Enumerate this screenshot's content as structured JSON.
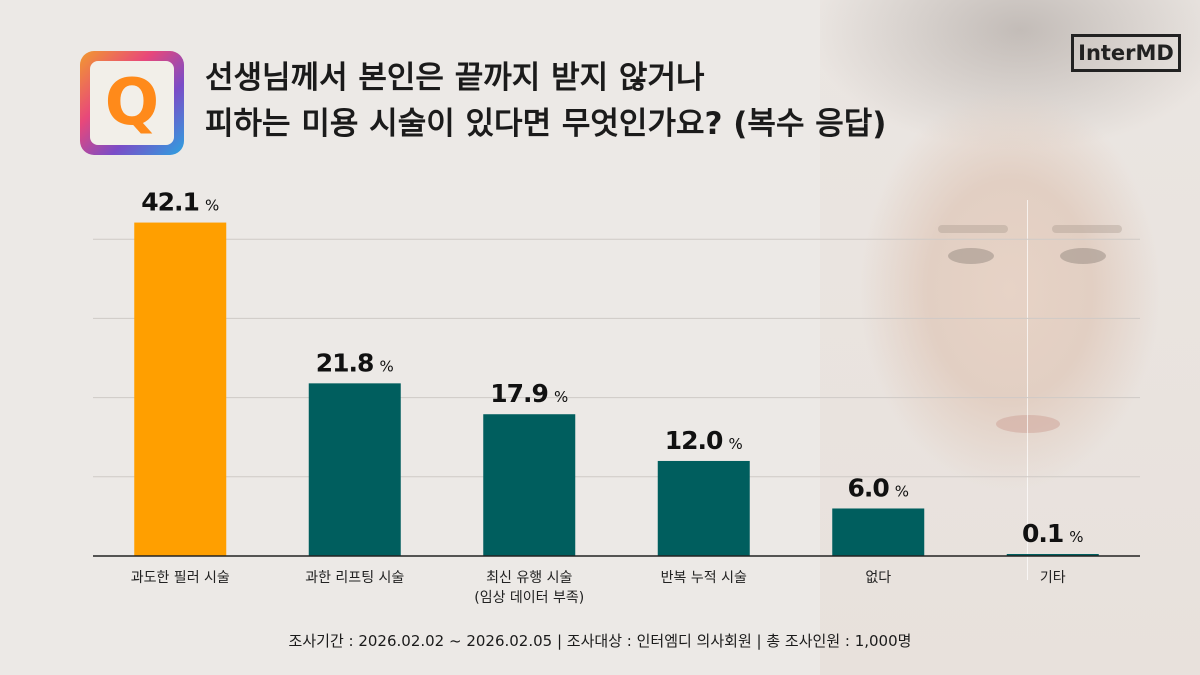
{
  "header": {
    "title_line1": "선생님께서 본인은 끝까지 받지 않거나",
    "title_line2": "피하는 미용 시술이 있다면 무엇인가요? (복수 응답)",
    "q_mark": "Q",
    "brand": "InterMD"
  },
  "footer": {
    "text": "조사기간 : 2026.02.02 ~ 2026.02.05   |  조사대상 : 인터엠디 의사회원  |  총 조사인원 : 1,000명"
  },
  "colors": {
    "highlight_bar": "#FF9F00",
    "bar": "#005E5E",
    "grid": "#cfcac6",
    "axis": "#222222"
  },
  "chart_data": {
    "type": "bar",
    "title": "선생님께서 본인은 끝까지 받지 않거나 피하는 미용 시술이 있다면 무엇인가요? (복수 응답)",
    "unit": "%",
    "categories": [
      [
        "과도한 필러 시술"
      ],
      [
        "과한 리프팅 시술"
      ],
      [
        "최신 유행 시술",
        "(임상 데이터 부족)"
      ],
      [
        "반복 누적 시술"
      ],
      [
        "없다"
      ],
      [
        "기타"
      ]
    ],
    "values": [
      42.1,
      21.8,
      17.9,
      12.0,
      6.0,
      0.1
    ],
    "value_labels": [
      "42.1",
      "21.8",
      "17.9",
      "12.0",
      "6.0",
      "0.1"
    ],
    "highlight_index": 0,
    "ylim": [
      0,
      50
    ],
    "grid": true,
    "legend": "none"
  }
}
